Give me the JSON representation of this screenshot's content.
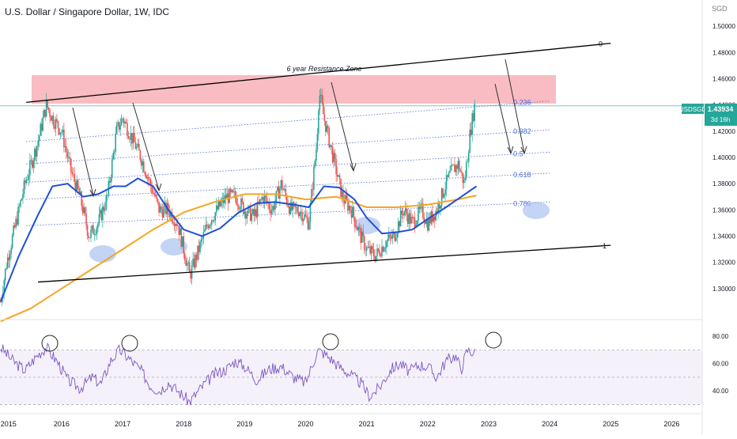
{
  "title": "U.S. Dollar / Singapore Dollar, 1W, IDC",
  "currency_label": "SGD",
  "annotation": "6 year Resistance Zone",
  "symbol_badge": "USDSGD",
  "price_badge": "1.43934",
  "countdown_badge": "3d 16h",
  "colors": {
    "candle_up": "#26a69a",
    "candle_down": "#ef5350",
    "ma_blue": "#1f4fd8",
    "ma_orange": "#f5a623",
    "rsi": "#7e57c2",
    "fib": "#4b6bdc",
    "resistance_zone": "#f6a5ae",
    "ellipse": "#a9c2f0",
    "badge": "#26a69a",
    "price_line": "#7ec8c0"
  },
  "chart_data": [
    {
      "type": "candlestick",
      "ylim": [
        1.28,
        1.52
      ],
      "y_ticks": [
        1.3,
        1.32,
        1.34,
        1.36,
        1.38,
        1.4,
        1.42,
        1.44,
        1.46,
        1.48,
        1.5
      ],
      "y_tick_labels": [
        "1.30000",
        "1.32000",
        "1.34000",
        "1.36000",
        "1.38000",
        "1.40000",
        "1.42000",
        "1.44000",
        "1.46000",
        "1.48000",
        "1.50000"
      ],
      "x_ticks": [
        2015,
        2016,
        2017,
        2018,
        2019,
        2020,
        2021,
        2022,
        2023,
        2024,
        2025,
        2026
      ],
      "x_tick_labels": [
        "2015",
        "2016",
        "2017",
        "2018",
        "2019",
        "2020",
        "2021",
        "2022",
        "2023",
        "2024",
        "2025",
        "2026"
      ],
      "xlim": [
        2014.99,
        2026.5
      ],
      "last_price": 1.43934,
      "price_anchors": [
        [
          2015.0,
          1.29
        ],
        [
          2015.1,
          1.32
        ],
        [
          2015.25,
          1.35
        ],
        [
          2015.4,
          1.38
        ],
        [
          2015.6,
          1.41
        ],
        [
          2015.75,
          1.44
        ],
        [
          2015.85,
          1.43
        ],
        [
          2016.0,
          1.42
        ],
        [
          2016.15,
          1.39
        ],
        [
          2016.3,
          1.37
        ],
        [
          2016.45,
          1.34
        ],
        [
          2016.6,
          1.35
        ],
        [
          2016.75,
          1.37
        ],
        [
          2016.9,
          1.42
        ],
        [
          2017.0,
          1.43
        ],
        [
          2017.1,
          1.42
        ],
        [
          2017.3,
          1.4
        ],
        [
          2017.45,
          1.38
        ],
        [
          2017.6,
          1.36
        ],
        [
          2017.75,
          1.36
        ],
        [
          2017.9,
          1.35
        ],
        [
          2018.0,
          1.33
        ],
        [
          2018.1,
          1.31
        ],
        [
          2018.25,
          1.33
        ],
        [
          2018.4,
          1.35
        ],
        [
          2018.55,
          1.36
        ],
        [
          2018.7,
          1.37
        ],
        [
          2018.85,
          1.37
        ],
        [
          2019.0,
          1.36
        ],
        [
          2019.15,
          1.355
        ],
        [
          2019.3,
          1.37
        ],
        [
          2019.45,
          1.36
        ],
        [
          2019.6,
          1.38
        ],
        [
          2019.75,
          1.36
        ],
        [
          2019.9,
          1.36
        ],
        [
          2020.05,
          1.35
        ],
        [
          2020.18,
          1.41
        ],
        [
          2020.22,
          1.45
        ],
        [
          2020.3,
          1.43
        ],
        [
          2020.45,
          1.4
        ],
        [
          2020.6,
          1.37
        ],
        [
          2020.75,
          1.36
        ],
        [
          2020.9,
          1.34
        ],
        [
          2021.0,
          1.33
        ],
        [
          2021.15,
          1.325
        ],
        [
          2021.3,
          1.335
        ],
        [
          2021.45,
          1.34
        ],
        [
          2021.6,
          1.36
        ],
        [
          2021.75,
          1.35
        ],
        [
          2021.9,
          1.36
        ],
        [
          2022.0,
          1.35
        ],
        [
          2022.15,
          1.36
        ],
        [
          2022.3,
          1.38
        ],
        [
          2022.4,
          1.39
        ],
        [
          2022.5,
          1.395
        ],
        [
          2022.6,
          1.38
        ],
        [
          2022.7,
          1.42
        ],
        [
          2022.77,
          1.43934
        ]
      ],
      "ma_blue": [
        [
          2015.0,
          1.29
        ],
        [
          2015.3,
          1.325
        ],
        [
          2015.6,
          1.355
        ],
        [
          2015.85,
          1.378
        ],
        [
          2016.1,
          1.38
        ],
        [
          2016.35,
          1.37
        ],
        [
          2016.6,
          1.372
        ],
        [
          2016.85,
          1.378
        ],
        [
          2017.05,
          1.378
        ],
        [
          2017.25,
          1.384
        ],
        [
          2017.5,
          1.378
        ],
        [
          2017.75,
          1.36
        ],
        [
          2018.0,
          1.345
        ],
        [
          2018.3,
          1.34
        ],
        [
          2018.6,
          1.346
        ],
        [
          2018.9,
          1.358
        ],
        [
          2019.2,
          1.365
        ],
        [
          2019.5,
          1.366
        ],
        [
          2019.8,
          1.364
        ],
        [
          2020.05,
          1.362
        ],
        [
          2020.3,
          1.378
        ],
        [
          2020.55,
          1.377
        ],
        [
          2020.8,
          1.368
        ],
        [
          2021.0,
          1.354
        ],
        [
          2021.25,
          1.342
        ],
        [
          2021.5,
          1.343
        ],
        [
          2021.75,
          1.345
        ],
        [
          2022.0,
          1.353
        ],
        [
          2022.3,
          1.362
        ],
        [
          2022.55,
          1.37
        ],
        [
          2022.8,
          1.378
        ]
      ],
      "ma_orange": [
        [
          2015.0,
          1.275
        ],
        [
          2015.5,
          1.285
        ],
        [
          2016.0,
          1.3
        ],
        [
          2016.5,
          1.315
        ],
        [
          2017.0,
          1.33
        ],
        [
          2017.5,
          1.345
        ],
        [
          2018.0,
          1.358
        ],
        [
          2018.5,
          1.366
        ],
        [
          2019.0,
          1.372
        ],
        [
          2019.5,
          1.372
        ],
        [
          2020.0,
          1.368
        ],
        [
          2020.5,
          1.37
        ],
        [
          2021.0,
          1.362
        ],
        [
          2021.5,
          1.362
        ],
        [
          2022.0,
          1.364
        ],
        [
          2022.5,
          1.368
        ],
        [
          2022.8,
          1.371
        ]
      ],
      "channel_upper": [
        [
          2015.42,
          1.442
        ],
        [
          2025.0,
          1.487
        ]
      ],
      "channel_lower": [
        [
          2015.42,
          1.305
        ],
        [
          2025.0,
          1.333
        ]
      ],
      "channel_labels": [
        "0",
        "1"
      ],
      "resistance_zone": [
        1.443,
        1.466
      ],
      "fib_levels": [
        {
          "label": "0.236",
          "start": [
            2015.42,
            1.412
          ],
          "end": [
            2024.0,
            1.443
          ]
        },
        {
          "label": "0.382",
          "start": [
            2015.42,
            1.395
          ],
          "end": [
            2024.0,
            1.421
          ]
        },
        {
          "label": "0.5",
          "start": [
            2015.42,
            1.381
          ],
          "end": [
            2024.0,
            1.404
          ]
        },
        {
          "label": "0.618",
          "start": [
            2015.42,
            1.368
          ],
          "end": [
            2024.0,
            1.388
          ]
        },
        {
          "label": "0.786",
          "start": [
            2015.42,
            1.348
          ],
          "end": [
            2024.0,
            1.366
          ]
        }
      ]
    },
    {
      "type": "line",
      "name": "RSI",
      "ylim": [
        25,
        90
      ],
      "y_ticks": [
        40,
        60,
        80
      ],
      "y_tick_labels": [
        "40.00",
        "60.00",
        "80.00"
      ],
      "bands": [
        30,
        50,
        70
      ],
      "anchors": [
        [
          2015.0,
          72
        ],
        [
          2015.2,
          62
        ],
        [
          2015.4,
          55
        ],
        [
          2015.6,
          66
        ],
        [
          2015.75,
          72
        ],
        [
          2015.95,
          60
        ],
        [
          2016.1,
          48
        ],
        [
          2016.3,
          42
        ],
        [
          2016.5,
          50
        ],
        [
          2016.65,
          45
        ],
        [
          2016.8,
          62
        ],
        [
          2016.95,
          70
        ],
        [
          2017.1,
          64
        ],
        [
          2017.3,
          55
        ],
        [
          2017.45,
          44
        ],
        [
          2017.6,
          40
        ],
        [
          2017.75,
          46
        ],
        [
          2017.9,
          40
        ],
        [
          2018.1,
          32
        ],
        [
          2018.3,
          43
        ],
        [
          2018.5,
          52
        ],
        [
          2018.7,
          56
        ],
        [
          2018.85,
          62
        ],
        [
          2019.0,
          58
        ],
        [
          2019.2,
          48
        ],
        [
          2019.4,
          56
        ],
        [
          2019.6,
          58
        ],
        [
          2019.8,
          50
        ],
        [
          2020.0,
          46
        ],
        [
          2020.2,
          70
        ],
        [
          2020.35,
          66
        ],
        [
          2020.55,
          58
        ],
        [
          2020.7,
          53
        ],
        [
          2020.9,
          46
        ],
        [
          2021.05,
          36
        ],
        [
          2021.2,
          42
        ],
        [
          2021.4,
          56
        ],
        [
          2021.55,
          60
        ],
        [
          2021.7,
          54
        ],
        [
          2021.85,
          59
        ],
        [
          2022.0,
          58
        ],
        [
          2022.15,
          50
        ],
        [
          2022.3,
          62
        ],
        [
          2022.45,
          66
        ],
        [
          2022.55,
          56
        ],
        [
          2022.65,
          70
        ],
        [
          2022.77,
          68
        ]
      ]
    }
  ]
}
